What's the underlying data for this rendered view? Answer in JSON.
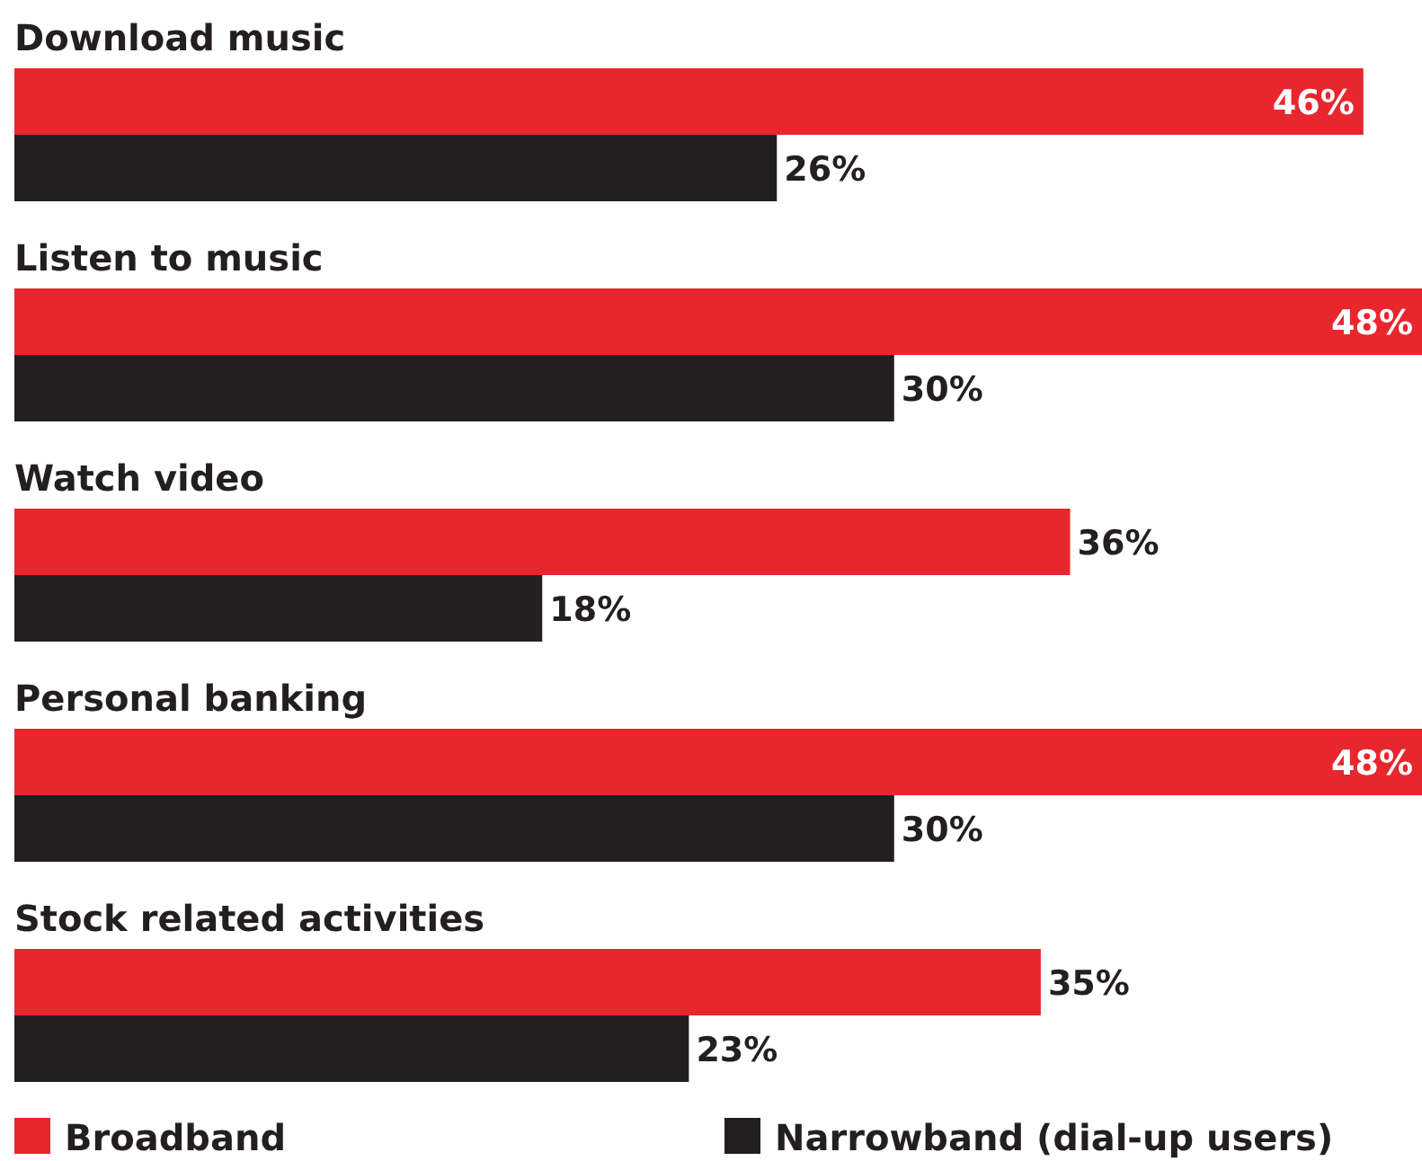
{
  "chart_data": {
    "type": "bar",
    "orientation": "horizontal",
    "categories": [
      "Download music",
      "Listen to music",
      "Watch video",
      "Personal banking",
      "Stock related activities"
    ],
    "series": [
      {
        "name": "Broadband",
        "color": "#e8262e",
        "values": [
          46,
          48,
          36,
          48,
          35
        ],
        "value_labels": [
          "46%",
          "48%",
          "36%",
          "48%",
          "35%"
        ]
      },
      {
        "name": "Narrowband (dial-up users)",
        "color": "#231f20",
        "values": [
          26,
          30,
          18,
          30,
          23
        ],
        "value_labels": [
          "26%",
          "30%",
          "18%",
          "30%",
          "23%"
        ]
      }
    ],
    "legend": "bottom"
  }
}
